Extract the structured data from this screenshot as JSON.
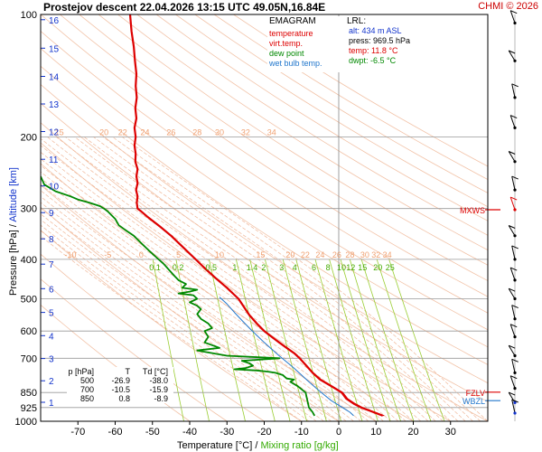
{
  "header": {
    "title": "Prostejov   descent   22.04.2026 13:15 UTC   49.05N,16.84E",
    "credit": "CHMI © 2026"
  },
  "legend": {
    "title": "EMAGRAM",
    "items": [
      {
        "label": "temperature",
        "color": "#dd0000"
      },
      {
        "label": "virt.temp.",
        "color": "#dd0000"
      },
      {
        "label": "dew point",
        "color": "#008800"
      },
      {
        "label": "wet bulb temp.",
        "color": "#2277cc"
      }
    ]
  },
  "lrl": {
    "title": "LRL:",
    "alt": "alt: 434 m ASL",
    "press": "press: 969.5 hPa",
    "temp": "temp: 11.8 °C",
    "dwpt": "dwpt: -6.5 °C"
  },
  "level_table": {
    "headers": [
      "p [hPa]",
      "T",
      "Td [°C]"
    ],
    "rows": [
      [
        "500",
        "-26.9",
        "-38.0"
      ],
      [
        "700",
        "-10.5",
        "-15.9"
      ],
      [
        "850",
        "0.8",
        "-8.9"
      ]
    ]
  },
  "axes": {
    "xlabel_prefix": "Temperature [°C]",
    "xlabel_sep": "/",
    "xlabel_mix": "Mixing ratio [g/kg]",
    "ylabel_pres": "Pressure [hPa]",
    "ylabel_sep": "/",
    "ylabel_alt": "Altitude [km]"
  },
  "markers": [
    {
      "label": "MXWS",
      "p": 302,
      "color": "#dd0000"
    },
    {
      "label": "FZLV",
      "p": 848,
      "color": "#dd0000"
    },
    {
      "label": "WBZL",
      "p": 890,
      "color": "#2277cc"
    }
  ],
  "chart_data": {
    "type": "line",
    "title": "Prostejov   descent   22.04.2026 13:15 UTC   49.05N,16.84E",
    "xlabel": "Temperature [°C] / Mixing ratio [g/kg]",
    "ylabel": "Pressure [hPa] / Altitude [km]",
    "xlim": [
      -80,
      40
    ],
    "ylim": [
      1000,
      100
    ],
    "y_scale": "log",
    "x_ticks": [
      -70,
      -60,
      -50,
      -40,
      -30,
      -20,
      -10,
      0,
      10,
      20,
      30
    ],
    "y_ticks": [
      100,
      200,
      300,
      400,
      500,
      600,
      700,
      850,
      925,
      1000
    ],
    "altitude_ticks_km": [
      {
        "label": "1",
        "p": 898
      },
      {
        "label": "2",
        "p": 795
      },
      {
        "label": "3",
        "p": 701
      },
      {
        "label": "4",
        "p": 616
      },
      {
        "label": "5",
        "p": 540
      },
      {
        "label": "6",
        "p": 472
      },
      {
        "label": "7",
        "p": 411
      },
      {
        "label": "8",
        "p": 356
      },
      {
        "label": "9",
        "p": 307
      },
      {
        "label": "10",
        "p": 264
      },
      {
        "label": "11",
        "p": 227
      },
      {
        "label": "12",
        "p": 194
      },
      {
        "label": "13",
        "p": 166
      },
      {
        "label": "14",
        "p": 142
      },
      {
        "label": "15",
        "p": 121
      },
      {
        "label": "16",
        "p": 103
      }
    ],
    "dry_adiabat_labels": [
      {
        "label": "15",
        "t": -75,
        "p": 200
      },
      {
        "label": "20",
        "t": -63,
        "p": 200
      },
      {
        "label": "22",
        "t": -58,
        "p": 200
      },
      {
        "label": "24",
        "t": -52,
        "p": 200
      },
      {
        "label": "26",
        "t": -45,
        "p": 200
      },
      {
        "label": "28",
        "t": -38,
        "p": 200
      },
      {
        "label": "30",
        "t": -32,
        "p": 200
      },
      {
        "label": "32",
        "t": -25,
        "p": 200
      },
      {
        "label": "34",
        "t": -18,
        "p": 200
      },
      {
        "label": "-10",
        "t": -72,
        "p": 400
      },
      {
        "label": "-5",
        "t": -62,
        "p": 400
      },
      {
        "label": "0",
        "t": -53,
        "p": 400
      },
      {
        "label": "5",
        "t": -43,
        "p": 400
      },
      {
        "label": "10",
        "t": -32,
        "p": 400
      },
      {
        "label": "15",
        "t": -21,
        "p": 400
      },
      {
        "label": "20",
        "t": -13,
        "p": 400
      },
      {
        "label": "22",
        "t": -9,
        "p": 400
      },
      {
        "label": "24",
        "t": -5,
        "p": 400
      },
      {
        "label": "26",
        "t": -0.5,
        "p": 400
      },
      {
        "label": "28",
        "t": 3,
        "p": 400
      },
      {
        "label": "30",
        "t": 7,
        "p": 400
      },
      {
        "label": "32",
        "t": 10,
        "p": 400
      },
      {
        "label": "34",
        "t": 13,
        "p": 400
      }
    ],
    "mixing_ratio_labels": [
      {
        "label": "0.1",
        "t": -56
      },
      {
        "label": "0.2",
        "t": -47
      },
      {
        "label": "0.5",
        "t": -37
      },
      {
        "label": "1",
        "t": -29
      },
      {
        "label": "1.4",
        "t": -26
      },
      {
        "label": "2",
        "t": -22
      },
      {
        "label": "3",
        "t": -16
      },
      {
        "label": "4",
        "t": -12
      },
      {
        "label": "6",
        "t": -5
      },
      {
        "label": "8",
        "t": 0
      },
      {
        "label": "10",
        "t": 4
      },
      {
        "label": "12",
        "t": 7
      },
      {
        "label": "15",
        "t": 10
      },
      {
        "label": "20",
        "t": 14
      },
      {
        "label": "25",
        "t": 18
      }
    ],
    "series": [
      {
        "name": "temperature",
        "color": "#dd0000",
        "points": [
          [
            11.8,
            969.5
          ],
          [
            10,
            955
          ],
          [
            8,
            940
          ],
          [
            6,
            925
          ],
          [
            4,
            905
          ],
          [
            2,
            880
          ],
          [
            0.8,
            850
          ],
          [
            -2,
            820
          ],
          [
            -5,
            790
          ],
          [
            -7,
            760
          ],
          [
            -9,
            725
          ],
          [
            -10.5,
            700
          ],
          [
            -12,
            680
          ],
          [
            -14,
            660
          ],
          [
            -16,
            640
          ],
          [
            -18,
            620
          ],
          [
            -20,
            600
          ],
          [
            -22,
            575
          ],
          [
            -24,
            548
          ],
          [
            -26.9,
            500
          ],
          [
            -30,
            470
          ],
          [
            -33,
            445
          ],
          [
            -36,
            420
          ],
          [
            -39,
            395
          ],
          [
            -42,
            372
          ],
          [
            -45,
            350
          ],
          [
            -48,
            332
          ],
          [
            -51,
            316
          ],
          [
            -53,
            305
          ],
          [
            -54,
            300
          ],
          [
            -54.2,
            290
          ],
          [
            -54,
            280
          ],
          [
            -54.4,
            270
          ],
          [
            -54,
            260
          ],
          [
            -54.3,
            250
          ],
          [
            -54,
            240
          ],
          [
            -54.6,
            230
          ],
          [
            -54.5,
            220
          ],
          [
            -54.8,
            210
          ],
          [
            -54.5,
            200
          ],
          [
            -54.8,
            190
          ],
          [
            -54.3,
            180
          ],
          [
            -54.6,
            170
          ],
          [
            -54.2,
            160
          ],
          [
            -54.5,
            150
          ],
          [
            -54.3,
            140
          ],
          [
            -54.7,
            130
          ],
          [
            -55,
            120
          ],
          [
            -55.6,
            110
          ],
          [
            -56,
            100
          ]
        ]
      },
      {
        "name": "dew point",
        "color": "#008800",
        "points": [
          [
            -6.5,
            969.5
          ],
          [
            -7,
            950
          ],
          [
            -8,
            925
          ],
          [
            -8.9,
            850
          ],
          [
            -11,
            820
          ],
          [
            -13,
            800
          ],
          [
            -12,
            790
          ],
          [
            -14,
            785
          ],
          [
            -15,
            770
          ],
          [
            -17,
            760
          ],
          [
            -19,
            755
          ],
          [
            -22,
            750
          ],
          [
            -28,
            745
          ],
          [
            -25,
            740
          ],
          [
            -23,
            730
          ],
          [
            -24,
            720
          ],
          [
            -26,
            710
          ],
          [
            -15.9,
            700
          ],
          [
            -30,
            690
          ],
          [
            -34,
            680
          ],
          [
            -38,
            670
          ],
          [
            -32,
            660
          ],
          [
            -36,
            640
          ],
          [
            -35,
            620
          ],
          [
            -36,
            600
          ],
          [
            -34,
            590
          ],
          [
            -35,
            575
          ],
          [
            -37,
            560
          ],
          [
            -38,
            545
          ],
          [
            -37,
            530
          ],
          [
            -38,
            520
          ],
          [
            -40,
            510
          ],
          [
            -38,
            500
          ],
          [
            -39,
            490
          ],
          [
            -43,
            485
          ],
          [
            -40,
            480
          ],
          [
            -38,
            475
          ],
          [
            -42,
            470
          ],
          [
            -41,
            460
          ],
          [
            -43,
            450
          ],
          [
            -44,
            440
          ],
          [
            -45,
            430
          ],
          [
            -47,
            410
          ],
          [
            -49,
            395
          ],
          [
            -51,
            380
          ],
          [
            -53,
            365
          ],
          [
            -55,
            350
          ],
          [
            -57,
            340
          ],
          [
            -59,
            330
          ],
          [
            -60,
            318
          ],
          [
            -62,
            305
          ],
          [
            -63,
            300
          ],
          [
            -64,
            296
          ],
          [
            -67,
            290
          ],
          [
            -70,
            285
          ],
          [
            -72,
            280
          ],
          [
            -76,
            272
          ],
          [
            -79,
            262
          ],
          [
            -80,
            250
          ]
        ]
      },
      {
        "name": "wet bulb temp.",
        "color": "#2277cc",
        "points": [
          [
            4,
            969.5
          ],
          [
            3,
            950
          ],
          [
            1,
            925
          ],
          [
            -2,
            890
          ],
          [
            -4,
            860
          ],
          [
            -6,
            830
          ],
          [
            -8,
            800
          ],
          [
            -10,
            770
          ],
          [
            -12,
            740
          ],
          [
            -14,
            715
          ],
          [
            -16,
            690
          ],
          [
            -18,
            665
          ],
          [
            -20,
            640
          ],
          [
            -22,
            615
          ],
          [
            -24,
            590
          ],
          [
            -26,
            565
          ],
          [
            -28,
            540
          ],
          [
            -30,
            515
          ],
          [
            -32,
            495
          ]
        ]
      },
      {
        "name": "virt.temp.",
        "color": "#dd0000",
        "points": [
          [
            12.2,
            969.5
          ],
          [
            10.4,
            955
          ],
          [
            8.4,
            940
          ],
          [
            6.4,
            925
          ],
          [
            4.4,
            905
          ],
          [
            2.4,
            880
          ],
          [
            1.1,
            850
          ],
          [
            -1.7,
            820
          ],
          [
            -4.7,
            790
          ],
          [
            -6.8,
            760
          ],
          [
            -8.8,
            725
          ],
          [
            -10.3,
            700
          ],
          [
            -11.8,
            680
          ],
          [
            -13.9,
            660
          ],
          [
            -15.9,
            640
          ],
          [
            -17.9,
            620
          ],
          [
            -19.9,
            600
          ],
          [
            -21.9,
            575
          ],
          [
            -23.9,
            548
          ],
          [
            -26.8,
            500
          ],
          [
            -29.9,
            470
          ],
          [
            -32.9,
            445
          ],
          [
            -35.9,
            420
          ],
          [
            -38.9,
            395
          ],
          [
            -41.9,
            372
          ],
          [
            -44.9,
            350
          ],
          [
            -47.9,
            332
          ],
          [
            -50.9,
            316
          ],
          [
            -52.9,
            305
          ],
          [
            -53.9,
            300
          ]
        ]
      }
    ]
  }
}
